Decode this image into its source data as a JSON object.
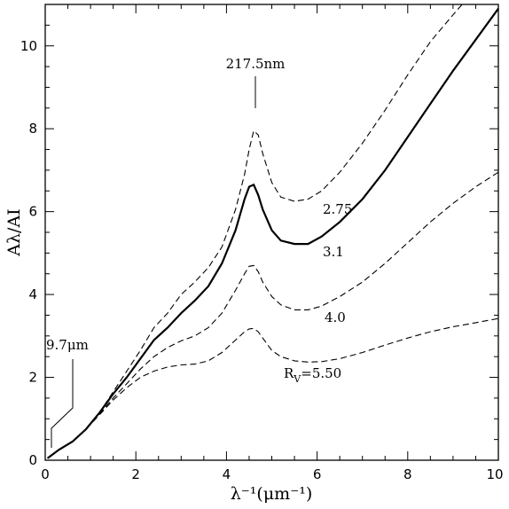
{
  "chart_data": {
    "type": "line",
    "title": "",
    "xlabel": "λ⁻¹(μm⁻¹)",
    "ylabel": "Aλ/AI",
    "xlim": [
      0,
      10
    ],
    "ylim": [
      0,
      11
    ],
    "xticks": [
      0,
      2,
      4,
      6,
      8,
      10
    ],
    "yticks": [
      0,
      2,
      4,
      6,
      8,
      10
    ],
    "xtick_labels": [
      "0",
      "2",
      "4",
      "6",
      "8",
      "10"
    ],
    "ytick_labels": [
      "0",
      "2",
      "4",
      "6",
      "8",
      "10"
    ],
    "grid": false,
    "series": [
      {
        "name": "2.75",
        "style": "dashed",
        "x": [
          0.05,
          0.3,
          0.6,
          0.9,
          1.2,
          1.5,
          1.8,
          2.1,
          2.4,
          2.7,
          3.0,
          3.3,
          3.6,
          3.9,
          4.2,
          4.4,
          4.5,
          4.6,
          4.7,
          4.8,
          5.0,
          5.2,
          5.5,
          5.8,
          6.1,
          6.5,
          7.0,
          7.5,
          8.0,
          8.5,
          9.0,
          9.2
        ],
        "y": [
          0.05,
          0.25,
          0.45,
          0.75,
          1.15,
          1.65,
          2.15,
          2.65,
          3.2,
          3.55,
          4.0,
          4.3,
          4.65,
          5.15,
          6.05,
          6.9,
          7.5,
          7.95,
          7.85,
          7.4,
          6.7,
          6.35,
          6.25,
          6.3,
          6.5,
          6.95,
          7.65,
          8.45,
          9.3,
          10.1,
          10.75,
          11.0
        ]
      },
      {
        "name": "3.1",
        "style": "solid",
        "x": [
          0.05,
          0.3,
          0.6,
          0.9,
          1.2,
          1.5,
          1.8,
          2.1,
          2.4,
          2.7,
          3.0,
          3.3,
          3.6,
          3.9,
          4.2,
          4.4,
          4.5,
          4.6,
          4.7,
          4.8,
          5.0,
          5.2,
          5.5,
          5.8,
          6.1,
          6.5,
          7.0,
          7.5,
          8.0,
          8.5,
          9.0,
          9.5,
          10.0
        ],
        "y": [
          0.05,
          0.25,
          0.45,
          0.75,
          1.15,
          1.6,
          2.0,
          2.45,
          2.9,
          3.2,
          3.55,
          3.85,
          4.2,
          4.75,
          5.55,
          6.3,
          6.6,
          6.65,
          6.4,
          6.05,
          5.55,
          5.3,
          5.22,
          5.22,
          5.4,
          5.75,
          6.3,
          7.0,
          7.8,
          8.6,
          9.4,
          10.15,
          10.9
        ]
      },
      {
        "name": "4.0",
        "style": "dashed",
        "x": [
          0.05,
          0.3,
          0.6,
          0.9,
          1.2,
          1.5,
          1.8,
          2.1,
          2.4,
          2.7,
          3.0,
          3.3,
          3.6,
          3.9,
          4.2,
          4.4,
          4.5,
          4.6,
          4.7,
          4.8,
          5.0,
          5.2,
          5.5,
          5.8,
          6.1,
          6.5,
          7.0,
          7.5,
          8.0,
          8.5,
          9.0,
          9.5,
          10.0
        ],
        "y": [
          0.05,
          0.25,
          0.45,
          0.75,
          1.12,
          1.5,
          1.85,
          2.2,
          2.5,
          2.72,
          2.88,
          3.0,
          3.2,
          3.55,
          4.1,
          4.5,
          4.68,
          4.7,
          4.55,
          4.3,
          3.95,
          3.75,
          3.63,
          3.63,
          3.72,
          3.95,
          4.3,
          4.75,
          5.25,
          5.75,
          6.2,
          6.6,
          6.95
        ]
      },
      {
        "name": "5.50",
        "style": "dashed",
        "x": [
          0.05,
          0.3,
          0.6,
          0.9,
          1.2,
          1.5,
          1.8,
          2.1,
          2.4,
          2.7,
          3.0,
          3.3,
          3.6,
          3.9,
          4.2,
          4.4,
          4.5,
          4.6,
          4.7,
          4.8,
          5.0,
          5.2,
          5.5,
          5.8,
          6.1,
          6.5,
          7.0,
          7.5,
          8.0,
          8.5,
          9.0,
          9.5,
          10.0
        ],
        "y": [
          0.05,
          0.25,
          0.45,
          0.75,
          1.1,
          1.45,
          1.75,
          2.0,
          2.15,
          2.25,
          2.3,
          2.32,
          2.4,
          2.6,
          2.9,
          3.1,
          3.17,
          3.18,
          3.1,
          2.95,
          2.65,
          2.5,
          2.4,
          2.37,
          2.38,
          2.45,
          2.6,
          2.78,
          2.95,
          3.1,
          3.22,
          3.32,
          3.42
        ]
      }
    ],
    "annotations": {
      "peak": "217.5nm",
      "ir": "9.7μm",
      "rv_prefix": "R",
      "rv_sub": "V",
      "rv_eq": "=5.50",
      "label_275": "2.75",
      "label_31": "3.1",
      "label_40": "4.0"
    }
  }
}
